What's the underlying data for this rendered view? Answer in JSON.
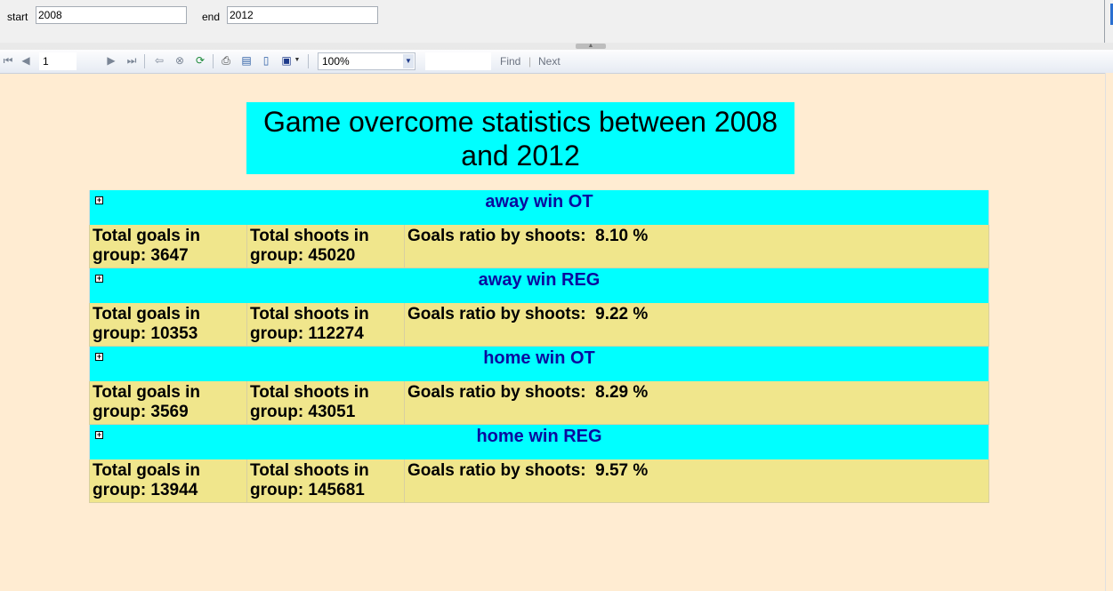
{
  "params": {
    "start_label": "start",
    "start_value": "2008",
    "end_label": "end",
    "end_value": "2012"
  },
  "toolbar": {
    "page_value": "1",
    "zoom_value": "100%",
    "find_label": "Find",
    "separator": "|",
    "next_label": "Next"
  },
  "report": {
    "title": "Game overcome statistics between 2008 and 2012",
    "groups": [
      {
        "name": "away win OT",
        "goals": "Total goals in group: 3647",
        "shoots": "Total shoots in group: 45020",
        "ratio": "Goals ratio by shoots:  8.10 %"
      },
      {
        "name": "away win REG",
        "goals": "Total goals in group: 10353",
        "shoots": "Total shoots in group: 112274",
        "ratio": "Goals ratio by shoots:  9.22 %"
      },
      {
        "name": "home win OT",
        "goals": "Total goals in group: 3569",
        "shoots": "Total shoots in group: 43051",
        "ratio": "Goals ratio by shoots:  8.29 %"
      },
      {
        "name": "home win REG",
        "goals": "Total goals in group: 13944",
        "shoots": "Total shoots in group: 145681",
        "ratio": "Goals ratio by shoots:  9.57 %"
      }
    ]
  },
  "colors": {
    "background": "#ffecd2",
    "header_cyan": "#00ffff",
    "row_khaki": "#f0e68c",
    "group_title": "#0a0a9e"
  },
  "icons": [
    "first-page-icon",
    "prev-page-icon",
    "next-page-icon",
    "last-page-icon",
    "back-icon",
    "stop-icon",
    "refresh-icon",
    "print-icon",
    "print-layout-icon",
    "page-setup-icon",
    "export-icon",
    "expand-icon"
  ]
}
